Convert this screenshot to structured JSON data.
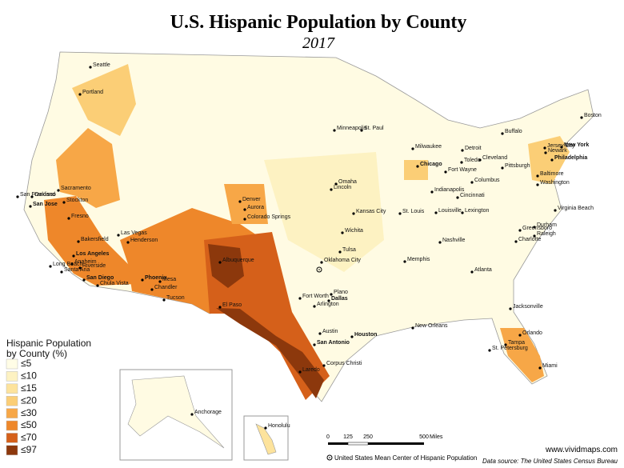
{
  "title": "U.S. Hispanic Population by County",
  "subtitle": "2017",
  "legend": {
    "title": [
      "Hispanic Population",
      "by County (%)"
    ],
    "items": [
      {
        "label": "≤5",
        "color": "#fffde6"
      },
      {
        "label": "≤10",
        "color": "#fdf2c2"
      },
      {
        "label": "≤15",
        "color": "#fde39c"
      },
      {
        "label": "≤20",
        "color": "#fbce76"
      },
      {
        "label": "≤30",
        "color": "#f7a747"
      },
      {
        "label": "≤50",
        "color": "#ee872a"
      },
      {
        "label": "≤70",
        "color": "#d5601a"
      },
      {
        "label": "≤97",
        "color": "#8c380c"
      }
    ]
  },
  "cities": [
    "Seattle",
    "Portland",
    "Sacramento",
    "Oakland",
    "San Francisco",
    "San Jose",
    "Stockton",
    "Fresno",
    "Bakersfield",
    "Las Vegas",
    "Henderson",
    "Los Angeles",
    "Anaheim",
    "Long Beach",
    "Riverside",
    "Santa Ana",
    "San Diego",
    "Chula Vista",
    "Phoenix",
    "Mesa",
    "Chandler",
    "Tucson",
    "Albuquerque",
    "El Paso",
    "Denver",
    "Aurora",
    "Colorado Springs",
    "Omaha",
    "Lincoln",
    "Wichita",
    "Kansas City",
    "Tulsa",
    "Oklahoma City",
    "Dallas",
    "Fort Worth",
    "Plano",
    "Arlington",
    "Austin",
    "San Antonio",
    "Houston",
    "Corpus Christi",
    "Laredo",
    "Minneapolis",
    "St. Paul",
    "Milwaukee",
    "Chicago",
    "Detroit",
    "Toledo",
    "Cleveland",
    "Fort Wayne",
    "Indianapolis",
    "Columbus",
    "Cincinnati",
    "Louisville",
    "Lexington",
    "St. Louis",
    "Nashville",
    "Memphis",
    "Atlanta",
    "New Orleans",
    "Jacksonville",
    "Orlando",
    "Tampa",
    "St. Petersburg",
    "Miami",
    "Charlotte",
    "Greensboro",
    "Durham",
    "Raleigh",
    "Virginia Beach",
    "Washington",
    "Baltimore",
    "Philadelphia",
    "New York",
    "Newark",
    "Jersey City",
    "Pittsburgh",
    "Buffalo",
    "Boston",
    "Anchorage",
    "Honolulu"
  ],
  "scale": {
    "ticks": [
      "0",
      "125",
      "250",
      "500"
    ],
    "unit": "Miles"
  },
  "center_note": "United States Mean Center of Hispanic Population",
  "website": "www.vividmaps.com",
  "source": "Data source: The United States Census Bureau"
}
